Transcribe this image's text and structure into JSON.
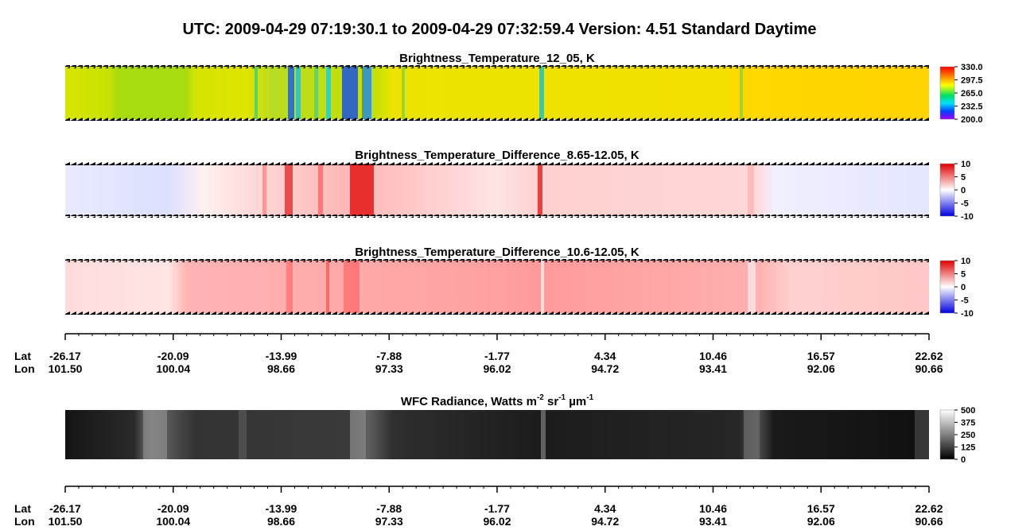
{
  "header": {
    "title": "UTC:  2009-04-29   07:19:30.1  to  2009-04-29   07:32:59.4    Version: 4.51  Standard Daytime"
  },
  "panels": [
    {
      "title": "Brightness_Temperature_12_05, K",
      "colorbar_labels": [
        "330.0",
        "297.5",
        "265.0",
        "232.5",
        "200.0"
      ]
    },
    {
      "title": "Brightness_Temperature_Difference_8.65-12.05, K",
      "colorbar_labels": [
        "10",
        "5",
        "0",
        "-5",
        "-10"
      ]
    },
    {
      "title": "Brightness_Temperature_Difference_10.6-12.05, K",
      "colorbar_labels": [
        "10",
        "5",
        "0",
        "-5",
        "-10"
      ]
    },
    {
      "title_segments": [
        "WFC Radiance, Watts m",
        "-2",
        " sr",
        "-1",
        " µm",
        "-1"
      ],
      "colorbar_labels": [
        "500",
        "375",
        "250",
        "125",
        "0"
      ]
    }
  ],
  "axes": [
    {
      "lat_label": "Lat",
      "lon_label": "Lon",
      "lat": [
        "-26.17",
        "-20.09",
        "-13.99",
        "-7.88",
        "-1.77",
        "4.34",
        "10.46",
        "16.57",
        "22.62"
      ],
      "lon": [
        "101.50",
        "100.04",
        "98.66",
        "97.33",
        "96.02",
        "94.72",
        "93.41",
        "92.06",
        "90.66"
      ]
    },
    {
      "lat_label": "Lat",
      "lon_label": "Lon",
      "lat": [
        "-26.17",
        "-20.09",
        "-13.99",
        "-7.88",
        "-1.77",
        "4.34",
        "10.46",
        "16.57",
        "22.62"
      ],
      "lon": [
        "101.50",
        "100.04",
        "98.66",
        "97.33",
        "96.02",
        "94.72",
        "93.41",
        "92.06",
        "90.66"
      ]
    }
  ]
}
